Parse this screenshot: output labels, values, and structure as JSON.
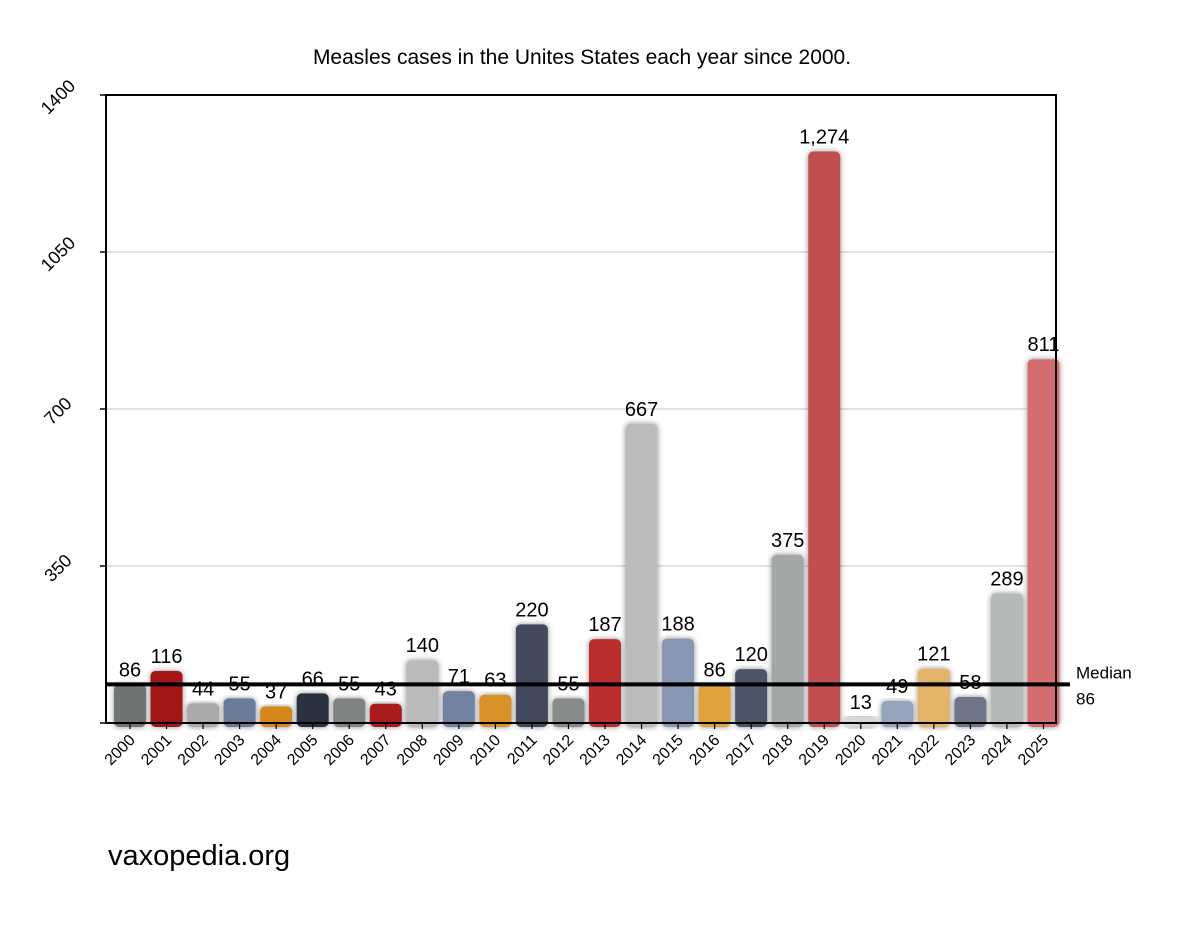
{
  "chart_data": {
    "type": "bar",
    "title": "Measles cases in the Unites States each year since 2000.",
    "xlabel": "",
    "ylabel": "",
    "ylim": [
      0,
      1400
    ],
    "yticks": [
      "350",
      "700",
      "1050",
      "1400"
    ],
    "grid": true,
    "categories": [
      "2000",
      "2001",
      "2002",
      "2003",
      "2004",
      "2005",
      "2006",
      "2007",
      "2008",
      "2009",
      "2010",
      "2011",
      "2012",
      "2013",
      "2014",
      "2015",
      "2016",
      "2017",
      "2018",
      "2019",
      "2020",
      "2021",
      "2022",
      "2023",
      "2024",
      "2025"
    ],
    "values": [
      86,
      116,
      44,
      55,
      37,
      66,
      55,
      43,
      140,
      71,
      63,
      220,
      55,
      187,
      667,
      188,
      86,
      120,
      375,
      1274,
      13,
      49,
      121,
      58,
      289,
      811
    ],
    "data_labels": [
      "86",
      "116",
      "44",
      "55",
      "37",
      "66",
      "55",
      "43",
      "140",
      "71",
      "63",
      "220",
      "55",
      "187",
      "667",
      "188",
      "86",
      "120",
      "375",
      "1,274",
      "13",
      "49",
      "121",
      "58",
      "289",
      "811"
    ],
    "bar_colors": [
      "#6f7572",
      "#a31515",
      "#a9aaa9",
      "#6b7b98",
      "#d4871e",
      "#2c3240",
      "#7f8482",
      "#a81c1c",
      "#b9bab9",
      "#7283a2",
      "#d9912b",
      "#434a5c",
      "#878c8a",
      "#bb2f2f",
      "#bcbcbc",
      "#8796b3",
      "#e0a23e",
      "#4c5469",
      "#a3a8a6",
      "#c24f4f",
      "#d8d8d8",
      "#96a4be",
      "#e3b467",
      "#6f7689",
      "#b5bab8",
      "#d46e6e"
    ],
    "median": {
      "value": 86,
      "label_line1": "Median",
      "label_line2": "86"
    }
  },
  "footer": {
    "text": "vaxopedia.org"
  }
}
